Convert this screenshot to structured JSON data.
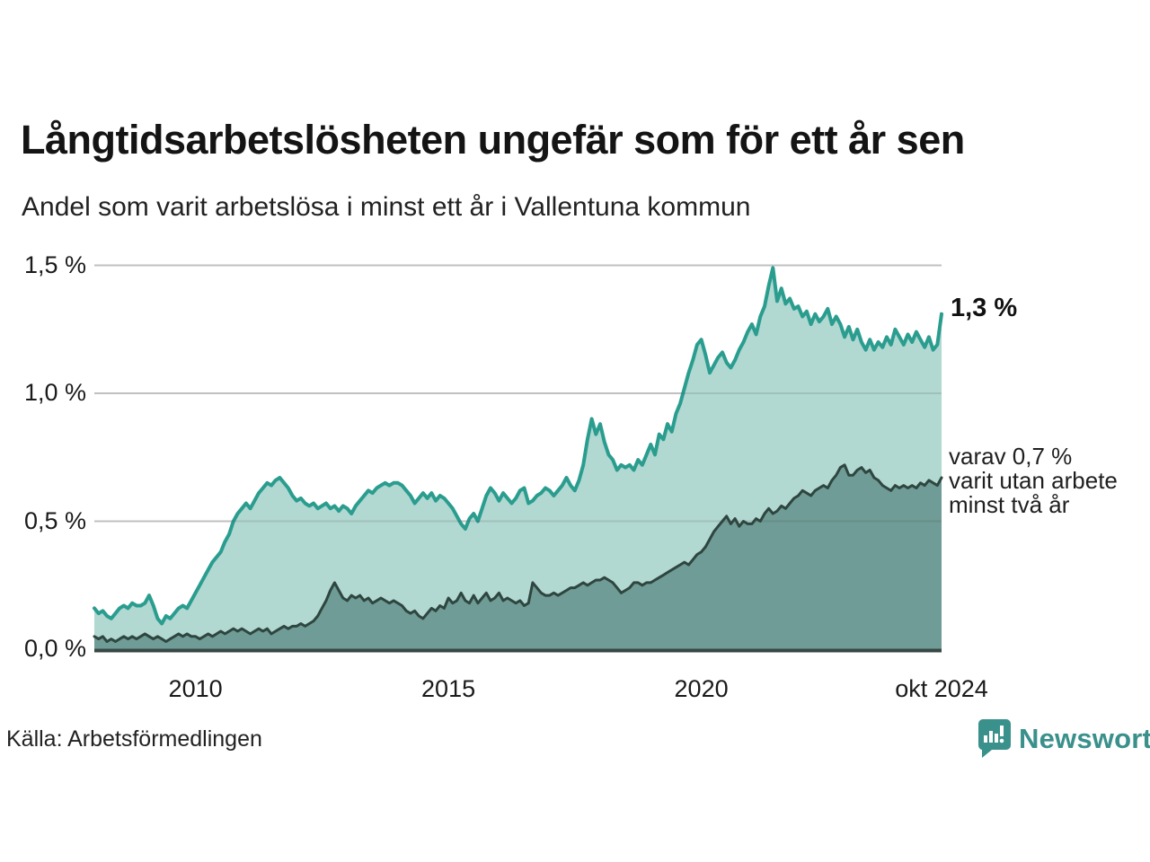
{
  "header": {
    "title": "Långtidsarbetslösheten ungefär som för ett år sen",
    "subtitle": "Andel som varit arbetslösa i minst ett år i Vallentuna kommun"
  },
  "chart_data": {
    "type": "area",
    "unit": "%",
    "frequency": "monthly",
    "x_start": "2008-01",
    "x_end": "2024-10",
    "ylim": [
      0,
      1.5
    ],
    "grid": "horizontal",
    "yticks": [
      {
        "value": 0.0,
        "label": "0,0 %"
      },
      {
        "value": 0.5,
        "label": "0,5 %"
      },
      {
        "value": 1.0,
        "label": "1,0 %"
      },
      {
        "value": 1.5,
        "label": "1,5 %"
      }
    ],
    "xticks": [
      {
        "year": 2010,
        "label": "2010"
      },
      {
        "year": 2015,
        "label": "2015"
      },
      {
        "year": 2020,
        "label": "2020"
      },
      {
        "year": 2024.75,
        "label": "okt 2024"
      }
    ],
    "series": [
      {
        "name": "Andel som varit arbetslösa i minst ett år",
        "line_color": "#2a9d8f",
        "fill_color": "#b2d8d2",
        "end_value": 1.3,
        "end_label": "1,3 %",
        "values": [
          0.16,
          0.14,
          0.15,
          0.13,
          0.12,
          0.14,
          0.16,
          0.17,
          0.16,
          0.18,
          0.17,
          0.17,
          0.18,
          0.21,
          0.17,
          0.12,
          0.1,
          0.13,
          0.12,
          0.14,
          0.16,
          0.17,
          0.16,
          0.19,
          0.22,
          0.25,
          0.28,
          0.31,
          0.34,
          0.36,
          0.38,
          0.42,
          0.45,
          0.5,
          0.53,
          0.55,
          0.57,
          0.55,
          0.58,
          0.61,
          0.63,
          0.65,
          0.64,
          0.66,
          0.67,
          0.65,
          0.63,
          0.6,
          0.58,
          0.59,
          0.57,
          0.56,
          0.57,
          0.55,
          0.56,
          0.57,
          0.55,
          0.56,
          0.54,
          0.56,
          0.55,
          0.53,
          0.56,
          0.58,
          0.6,
          0.62,
          0.61,
          0.63,
          0.64,
          0.65,
          0.64,
          0.65,
          0.65,
          0.64,
          0.62,
          0.6,
          0.57,
          0.59,
          0.61,
          0.59,
          0.61,
          0.58,
          0.6,
          0.59,
          0.57,
          0.55,
          0.52,
          0.49,
          0.47,
          0.51,
          0.53,
          0.5,
          0.55,
          0.6,
          0.63,
          0.61,
          0.58,
          0.61,
          0.59,
          0.57,
          0.59,
          0.62,
          0.63,
          0.57,
          0.58,
          0.6,
          0.61,
          0.63,
          0.62,
          0.6,
          0.62,
          0.64,
          0.67,
          0.64,
          0.62,
          0.66,
          0.72,
          0.82,
          0.9,
          0.84,
          0.88,
          0.81,
          0.76,
          0.74,
          0.7,
          0.72,
          0.71,
          0.72,
          0.7,
          0.74,
          0.72,
          0.76,
          0.8,
          0.76,
          0.84,
          0.82,
          0.88,
          0.85,
          0.92,
          0.96,
          1.02,
          1.08,
          1.13,
          1.19,
          1.21,
          1.15,
          1.08,
          1.11,
          1.14,
          1.16,
          1.12,
          1.1,
          1.13,
          1.17,
          1.2,
          1.24,
          1.27,
          1.23,
          1.3,
          1.34,
          1.42,
          1.49,
          1.36,
          1.41,
          1.35,
          1.37,
          1.33,
          1.34,
          1.3,
          1.32,
          1.27,
          1.31,
          1.28,
          1.3,
          1.33,
          1.27,
          1.3,
          1.27,
          1.22,
          1.26,
          1.21,
          1.25,
          1.2,
          1.17,
          1.21,
          1.17,
          1.2,
          1.18,
          1.22,
          1.19,
          1.25,
          1.22,
          1.19,
          1.23,
          1.2,
          1.24,
          1.21,
          1.18,
          1.22,
          1.17,
          1.19,
          1.31
        ]
      },
      {
        "name": "Varav utan arbete minst två år",
        "line_color": "#2e463f",
        "fill_color": "#6f9c96",
        "end_value": 0.7,
        "end_label_lines": [
          "varav 0,7 %",
          "varit utan arbete",
          "minst två år"
        ],
        "values": [
          0.05,
          0.04,
          0.05,
          0.03,
          0.04,
          0.03,
          0.04,
          0.05,
          0.04,
          0.05,
          0.04,
          0.05,
          0.06,
          0.05,
          0.04,
          0.05,
          0.04,
          0.03,
          0.04,
          0.05,
          0.06,
          0.05,
          0.06,
          0.05,
          0.05,
          0.04,
          0.05,
          0.06,
          0.05,
          0.06,
          0.07,
          0.06,
          0.07,
          0.08,
          0.07,
          0.08,
          0.07,
          0.06,
          0.07,
          0.08,
          0.07,
          0.08,
          0.06,
          0.07,
          0.08,
          0.09,
          0.08,
          0.09,
          0.09,
          0.1,
          0.09,
          0.1,
          0.11,
          0.13,
          0.16,
          0.19,
          0.23,
          0.26,
          0.23,
          0.2,
          0.19,
          0.21,
          0.2,
          0.21,
          0.19,
          0.2,
          0.18,
          0.19,
          0.2,
          0.19,
          0.18,
          0.19,
          0.18,
          0.17,
          0.15,
          0.14,
          0.15,
          0.13,
          0.12,
          0.14,
          0.16,
          0.15,
          0.17,
          0.16,
          0.2,
          0.18,
          0.19,
          0.22,
          0.19,
          0.18,
          0.21,
          0.18,
          0.2,
          0.22,
          0.19,
          0.2,
          0.22,
          0.19,
          0.2,
          0.19,
          0.18,
          0.19,
          0.17,
          0.18,
          0.26,
          0.24,
          0.22,
          0.21,
          0.21,
          0.22,
          0.21,
          0.22,
          0.23,
          0.24,
          0.24,
          0.25,
          0.26,
          0.25,
          0.26,
          0.27,
          0.27,
          0.28,
          0.27,
          0.26,
          0.24,
          0.22,
          0.23,
          0.24,
          0.26,
          0.26,
          0.25,
          0.26,
          0.26,
          0.27,
          0.28,
          0.29,
          0.3,
          0.31,
          0.32,
          0.33,
          0.34,
          0.33,
          0.35,
          0.37,
          0.38,
          0.4,
          0.43,
          0.46,
          0.48,
          0.5,
          0.52,
          0.49,
          0.51,
          0.48,
          0.5,
          0.49,
          0.49,
          0.51,
          0.5,
          0.53,
          0.55,
          0.53,
          0.54,
          0.56,
          0.55,
          0.57,
          0.59,
          0.6,
          0.62,
          0.61,
          0.6,
          0.62,
          0.63,
          0.64,
          0.63,
          0.66,
          0.68,
          0.71,
          0.72,
          0.68,
          0.68,
          0.7,
          0.71,
          0.69,
          0.7,
          0.67,
          0.66,
          0.64,
          0.63,
          0.62,
          0.64,
          0.63,
          0.64,
          0.63,
          0.64,
          0.63,
          0.65,
          0.64,
          0.66,
          0.65,
          0.64,
          0.67
        ]
      }
    ]
  },
  "footer": {
    "source": "Källa: Arbetsförmedlingen",
    "logo_text": "Newsworthy"
  },
  "colors": {
    "accent_teal": "#2a9d8f",
    "light_fill": "#b2d8d2",
    "dark_fill": "#6f9c96",
    "dark_line": "#2e463f",
    "grid": "#d8d8d8",
    "baseline": "#374743",
    "logo_teal": "#3a908b"
  }
}
